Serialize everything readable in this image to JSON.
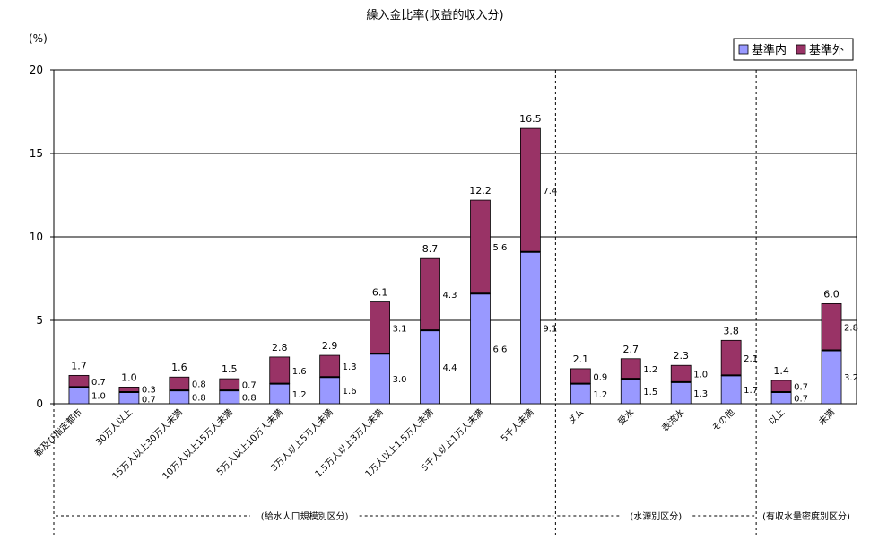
{
  "chart_data": {
    "type": "bar",
    "stacked": true,
    "title": "繰入金比率(収益的収入分)",
    "unit_label": "(%)",
    "ylim": [
      0,
      20
    ],
    "yticks": [
      "0",
      "5",
      "10",
      "15",
      "20"
    ],
    "grid": true,
    "legend_position": "top-right",
    "categories": [
      "都及び指定都市",
      "30万人以上",
      "15万人以上30万人未満",
      "10万人以上15万人未満",
      "5万人以上10万人未満",
      "3万人以上5万人未満",
      "1.5万人以上3万人未満",
      "1万人以上1.5万人未満",
      "5千人以上1万人未満",
      "5千人未満",
      "ダム",
      "受水",
      "表流水",
      "その他",
      "以上",
      "未満"
    ],
    "series": [
      {
        "name": "基準内",
        "color": "#9999ff",
        "values": [
          1.0,
          0.7,
          0.8,
          0.8,
          1.2,
          1.6,
          3.0,
          4.4,
          6.6,
          9.1,
          1.2,
          1.5,
          1.3,
          1.7,
          0.7,
          3.2
        ],
        "labels": [
          "1.0",
          "0.7",
          "0.8",
          "0.8",
          "1.2",
          "1.6",
          "3.0",
          "4.4",
          "6.6",
          "9.1",
          "1.2",
          "1.5",
          "1.3",
          "1.7",
          "0.7",
          "3.2"
        ]
      },
      {
        "name": "基準外",
        "color": "#993366",
        "values": [
          0.7,
          0.3,
          0.8,
          0.7,
          1.6,
          1.3,
          3.1,
          4.3,
          5.6,
          7.4,
          0.9,
          1.2,
          1.0,
          2.1,
          0.7,
          2.8
        ],
        "labels": [
          "0.7",
          "0.3",
          "0.8",
          "0.7",
          "1.6",
          "1.3",
          "3.1",
          "4.3",
          "5.6",
          "7.4",
          "0.9",
          "1.2",
          "1.0",
          "2.1",
          "0.7",
          "2.8"
        ]
      }
    ],
    "totals": [
      1.7,
      1.0,
      1.6,
      1.5,
      2.8,
      2.9,
      6.1,
      8.7,
      12.2,
      16.5,
      2.1,
      2.7,
      2.3,
      3.8,
      1.4,
      6.0
    ],
    "total_labels": [
      "1.7",
      "1.0",
      "1.6",
      "1.5",
      "2.8",
      "2.9",
      "6.1",
      "8.7",
      "12.2",
      "16.5",
      "2.1",
      "2.7",
      "2.3",
      "3.8",
      "1.4",
      "6.0"
    ],
    "groups": [
      {
        "label": "(給水人口規模別区分)",
        "count": 10
      },
      {
        "label": "(水源別区分)",
        "count": 4
      },
      {
        "label": "(有収水量密度別区分)",
        "count": 2
      }
    ]
  }
}
